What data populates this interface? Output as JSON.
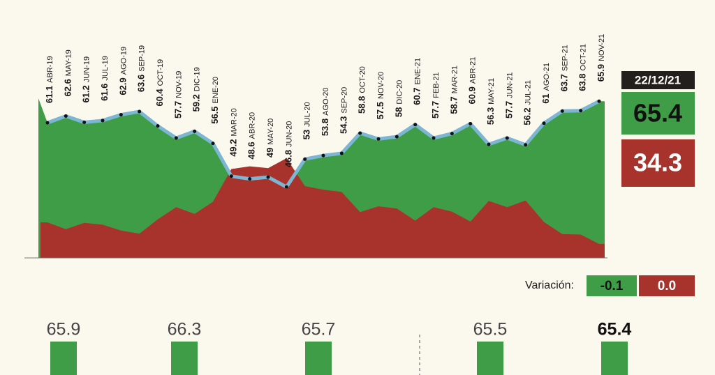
{
  "chart_data": {
    "type": "line",
    "categories": [
      "ABR-19",
      "MAY-19",
      "JUN-19",
      "JUL-19",
      "AGO-19",
      "SEP-19",
      "OCT-19",
      "NOV-19",
      "DIC-19",
      "ENE-20",
      "MAR-20",
      "ABR-20",
      "MAY-20",
      "JUN-20",
      "JUL-20",
      "AGO-20",
      "SEP-20",
      "OCT-20",
      "NOV-20",
      "DIC-20",
      "ENE-21",
      "FEB-21",
      "MAR-21",
      "ABR-21",
      "MAY-21",
      "JUN-21",
      "JUL-21",
      "AGO-21",
      "SEP-21",
      "OCT-21",
      "NOV-21"
    ],
    "values": [
      61.1,
      62.6,
      61.2,
      61.6,
      62.9,
      63.6,
      60.4,
      57.7,
      59.2,
      56.5,
      49.2,
      48.6,
      49.0,
      46.8,
      53.0,
      53.8,
      54.3,
      58.8,
      57.5,
      58.0,
      60.7,
      57.7,
      58.7,
      60.9,
      56.3,
      57.7,
      56.2,
      61.0,
      63.7,
      63.8,
      65.9
    ],
    "ylim": [
      31,
      66
    ],
    "color": "#7db6d3",
    "approval_color": "#3f9d48",
    "disapproval_color": "#a8322c"
  },
  "current": {
    "date": "22/12/21",
    "approval": 65.4,
    "disapproval": 34.3
  },
  "variation": {
    "label": "Variación:",
    "values": [
      -0.1,
      0
    ],
    "value_labels": [
      "-0.1",
      "0.0"
    ]
  },
  "comparison": {
    "values": [
      65.9,
      66.3,
      65.7,
      65.5,
      65.4
    ]
  }
}
